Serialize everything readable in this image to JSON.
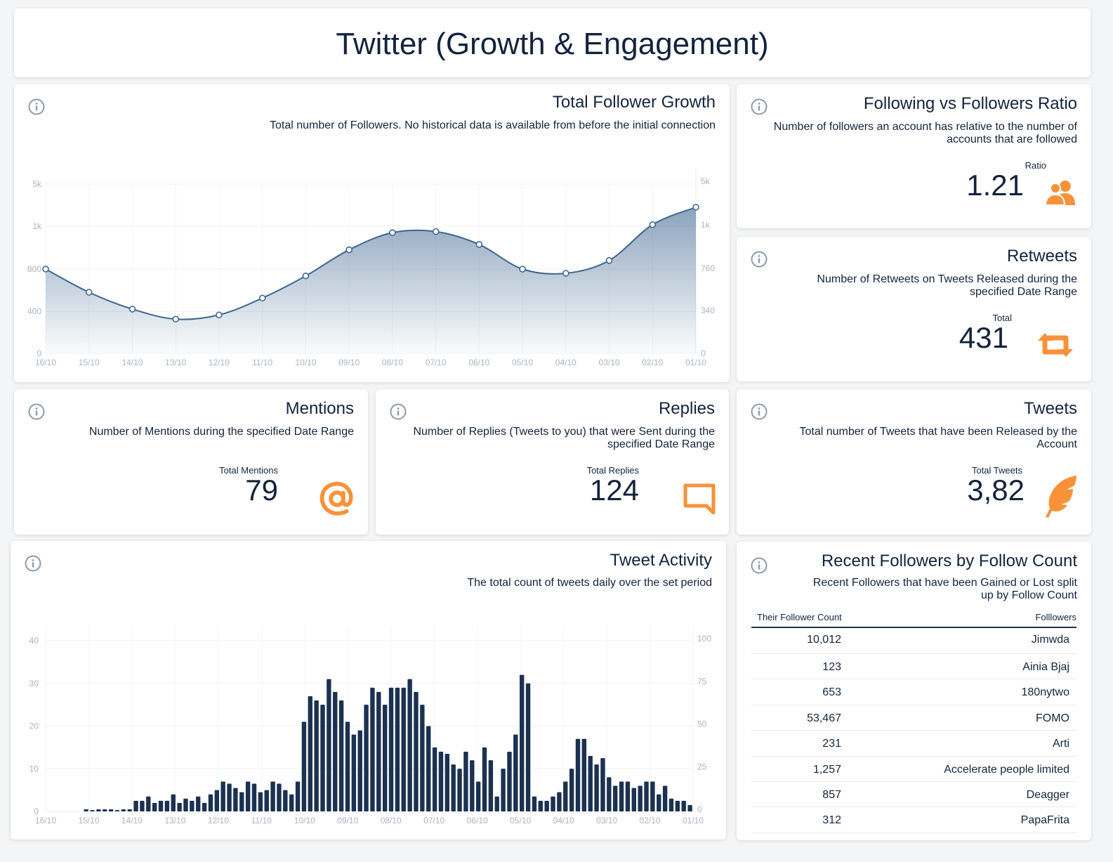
{
  "header": {
    "title": "Twitter (Growth & Engagement)"
  },
  "cards": {
    "follower_growth": {
      "title": "Total Follower Growth",
      "subtitle": "Total number of Followers. No historical data is available from before the initial connection"
    },
    "ratio": {
      "title": "Following vs Followers Ratio",
      "subtitle": "Number of followers an account has relative to the number of accounts that are followed",
      "label": "Ratio",
      "value": "1.21",
      "icon": "users-icon"
    },
    "retweets": {
      "title": "Retweets",
      "subtitle": "Number of Retweets on Tweets Released during the specified Date Range",
      "label": "Total",
      "value": "431",
      "icon": "retweet-icon"
    },
    "mentions": {
      "title": "Mentions",
      "subtitle": "Number of Mentions during the specified Date Range",
      "label": "Total Mentions",
      "value": "79",
      "icon": "at-icon"
    },
    "replies": {
      "title": "Replies",
      "subtitle": "Number of Replies (Tweets to you) that were Sent during the specified Date Range",
      "label": "Total Replies",
      "value": "124",
      "icon": "comment-icon"
    },
    "tweets": {
      "title": "Tweets",
      "subtitle": "Total number of Tweets that have been Released by the Account",
      "label": "Total Tweets",
      "value": "3,82",
      "icon": "feather-icon"
    },
    "tweet_activity": {
      "title": "Tweet Activity",
      "subtitle": "The total count of tweets daily over the set period"
    },
    "recent_followers": {
      "title": "Recent Followers by Follow Count",
      "subtitle": "Recent Followers that have been Gained or Lost split up by Follow Count",
      "columns": [
        "Their Follower Count",
        "Folllowers"
      ],
      "rows": [
        [
          "10,012",
          "Jimwda"
        ],
        [
          "123",
          "Ainia Bjaj"
        ],
        [
          "653",
          "180nytwo"
        ],
        [
          "53,467",
          "FOMO"
        ],
        [
          "231",
          "Arti"
        ],
        [
          "1,257",
          "Accelerate people limited"
        ],
        [
          "857",
          "Deagger"
        ],
        [
          "312",
          "PapaFrita"
        ]
      ]
    }
  },
  "colors": {
    "accent": "#f7923a",
    "navy": "#1b3150",
    "line": "#3e6690"
  },
  "chart_data": [
    {
      "type": "area",
      "x": [
        "16/10",
        "15/10",
        "14/10",
        "13/10",
        "12/10",
        "11/10",
        "10/10",
        "09/10",
        "08/10",
        "07/10",
        "06/10",
        "05/10",
        "04/10",
        "03/10",
        "02/10",
        "01/10"
      ],
      "y_left_ticks": [
        "0",
        "400",
        "800",
        "1k",
        "5k"
      ],
      "y_right_ticks": [
        "0",
        "340",
        "760",
        "1k",
        "5k"
      ],
      "series": [
        {
          "values": [
            800,
            580,
            420,
            325,
            365,
            525,
            735,
            890,
            970,
            975,
            915,
            800,
            760,
            840,
            1150,
            2800
          ]
        }
      ]
    },
    {
      "type": "bar",
      "x_ticks": [
        "16/10",
        "15/10",
        "14/10",
        "13/10",
        "12/10",
        "11/10",
        "10/10",
        "09/10",
        "08/10",
        "07/10",
        "06/10",
        "05/10",
        "04/10",
        "03/10",
        "02/10",
        "01/10"
      ],
      "ylim": [
        0,
        40
      ],
      "y_left_ticks": [
        "0",
        "10",
        "20",
        "30",
        "40"
      ],
      "y_right_ticks": [
        "0",
        "25",
        "50",
        "75",
        "100"
      ],
      "values": [
        0,
        0,
        0,
        0,
        0,
        0,
        0.5,
        0.3,
        0.5,
        0.5,
        0.5,
        0.3,
        0.5,
        0.5,
        2.5,
        2.5,
        3.5,
        2,
        2.5,
        2.5,
        4,
        2,
        3,
        2.5,
        3.5,
        2,
        4,
        5,
        7,
        6.5,
        5.5,
        4.5,
        7,
        6.5,
        4.5,
        5,
        7,
        6.5,
        5,
        4,
        7,
        21,
        27,
        26,
        25,
        31,
        28,
        26,
        21,
        18,
        19,
        25,
        29,
        28,
        25,
        29,
        29,
        29,
        31,
        28,
        25,
        20,
        15,
        14,
        13.5,
        11,
        10,
        14,
        12,
        7,
        15,
        12,
        3.5,
        10,
        14,
        18,
        32,
        30,
        3.5,
        2.5,
        2.5,
        3.5,
        4.5,
        7,
        10,
        17,
        17,
        13,
        11,
        12.5,
        8,
        6,
        7,
        7,
        5.5,
        6,
        7,
        7,
        4,
        6,
        3,
        2.5,
        2.5,
        1.5
      ]
    }
  ]
}
